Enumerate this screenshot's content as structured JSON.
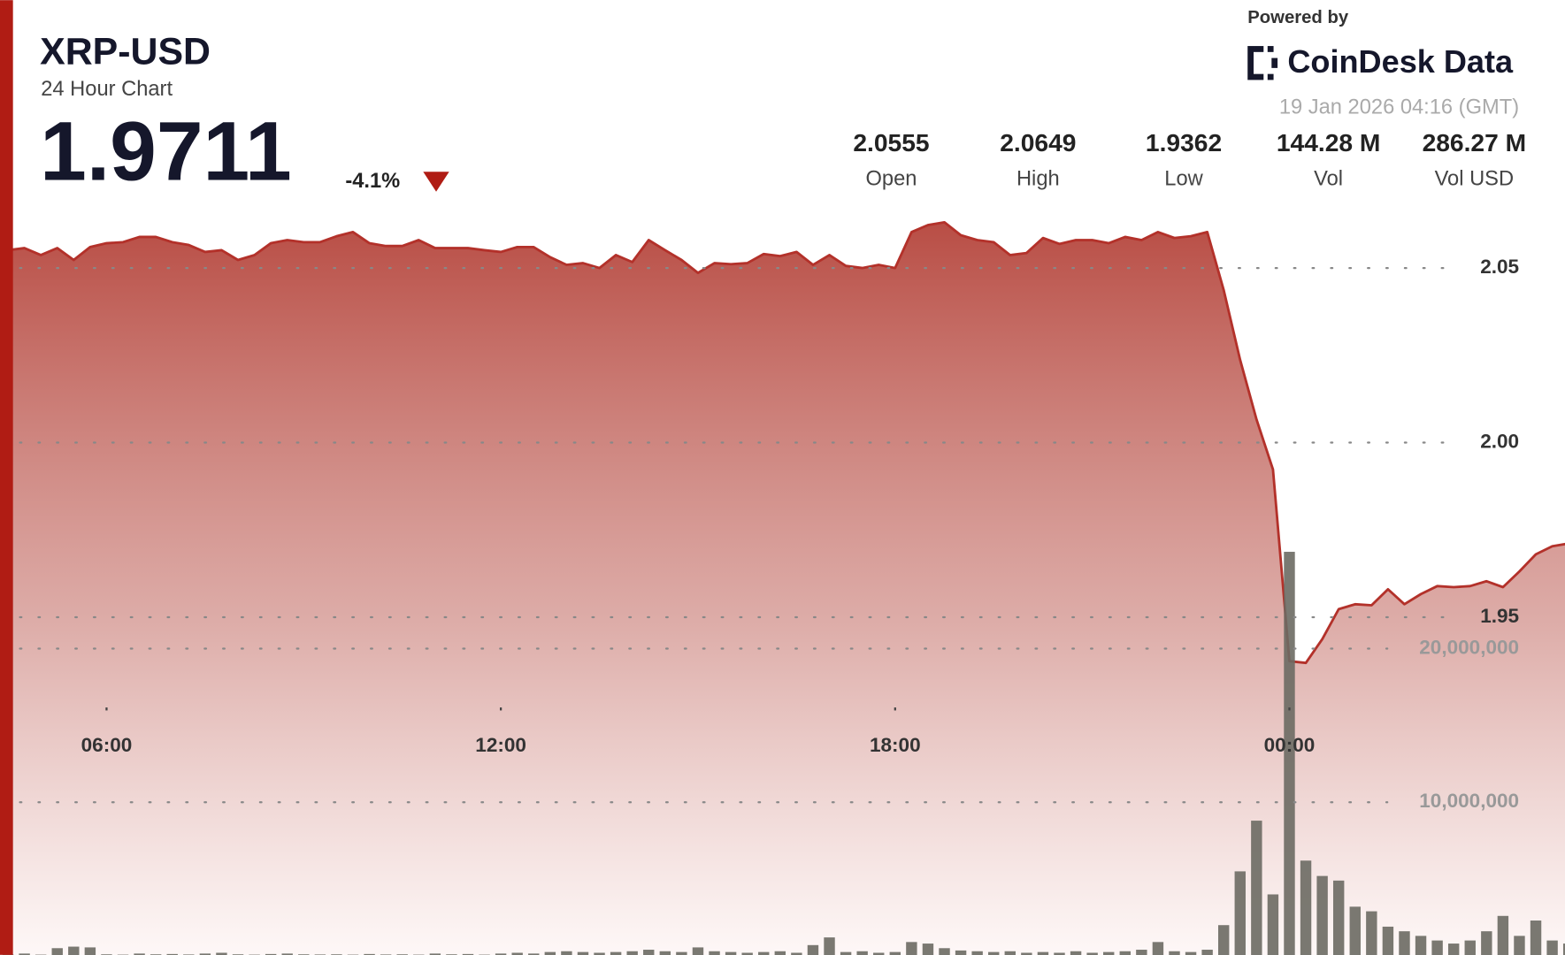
{
  "chart_data": {
    "type": "line",
    "title": "XRP-USD",
    "subtitle": "24 Hour Chart",
    "price": "1.9711",
    "change": "-4.1%",
    "stats": [
      {
        "value": "2.0555",
        "label": "Open"
      },
      {
        "value": "2.0649",
        "label": "High"
      },
      {
        "value": "1.9362",
        "label": "Low"
      },
      {
        "value": "144.28 M",
        "label": "Vol"
      },
      {
        "value": "286.27 M",
        "label": "Vol USD"
      }
    ],
    "powered_by": "Powered by",
    "brand": "CoinDesk Data",
    "timestamp": "19 Jan 2026 04:16 (GMT)",
    "x": [
      "04:30",
      "04:45",
      "05:00",
      "05:15",
      "05:30",
      "05:45",
      "06:00",
      "06:15",
      "06:30",
      "06:45",
      "07:00",
      "07:15",
      "07:30",
      "07:45",
      "08:00",
      "08:15",
      "08:30",
      "08:45",
      "09:00",
      "09:15",
      "09:30",
      "09:45",
      "10:00",
      "10:15",
      "10:30",
      "10:45",
      "11:00",
      "11:15",
      "11:30",
      "11:45",
      "12:00",
      "12:15",
      "12:30",
      "12:45",
      "13:00",
      "13:15",
      "13:30",
      "13:45",
      "14:00",
      "14:15",
      "14:30",
      "14:45",
      "15:00",
      "15:15",
      "15:30",
      "15:45",
      "16:00",
      "16:15",
      "16:30",
      "16:45",
      "17:00",
      "17:15",
      "17:30",
      "17:45",
      "18:00",
      "18:15",
      "18:30",
      "18:45",
      "19:00",
      "19:15",
      "19:30",
      "19:45",
      "20:00",
      "20:15",
      "20:30",
      "20:45",
      "21:00",
      "21:15",
      "21:30",
      "21:45",
      "22:00",
      "22:15",
      "22:30",
      "22:45",
      "23:00",
      "23:15",
      "23:30",
      "23:45",
      "00:00",
      "00:15",
      "00:30",
      "00:45",
      "01:00",
      "01:15",
      "01:30",
      "01:45",
      "02:00",
      "02:15",
      "02:30",
      "02:45",
      "03:00",
      "03:15",
      "03:30",
      "03:45",
      "04:00",
      "04:15"
    ],
    "xticks": [
      "06:00",
      "12:00",
      "18:00",
      "00:00"
    ],
    "ylim": [
      1.853,
      2.073
    ],
    "yticks": [
      1.95,
      {
        "value": 2,
        "label": "2.00"
      },
      2.05
    ],
    "y2lim": [
      0,
      50000000
    ],
    "y2ticks": [
      {
        "value": 10000000,
        "label": "10,000,000"
      },
      {
        "value": 20000000,
        "label": "20,000,000"
      }
    ],
    "grid": true,
    "series": [
      {
        "name": "Price",
        "type": "line",
        "color": "#b3312a",
        "values": [
          2.0551,
          2.0557,
          2.0537,
          2.0557,
          2.0523,
          2.056,
          2.0571,
          2.0574,
          2.0589,
          2.0589,
          2.0574,
          2.0566,
          2.0546,
          2.0551,
          2.0523,
          2.0537,
          2.0571,
          2.058,
          2.0574,
          2.0574,
          2.0591,
          2.0603,
          2.0571,
          2.0563,
          2.0563,
          2.058,
          2.0557,
          2.0557,
          2.0557,
          2.0551,
          2.0546,
          2.056,
          2.056,
          2.0531,
          2.0509,
          2.0514,
          2.05,
          2.0537,
          2.0517,
          2.058,
          2.0551,
          2.0523,
          2.0486,
          2.0514,
          2.0511,
          2.0514,
          2.054,
          2.0534,
          2.0546,
          2.0509,
          2.0537,
          2.0506,
          2.05,
          2.0509,
          2.05,
          2.0603,
          2.0623,
          2.0631,
          2.0594,
          2.058,
          2.0574,
          2.0537,
          2.0543,
          2.0586,
          2.0569,
          2.058,
          2.058,
          2.0571,
          2.0589,
          2.058,
          2.0603,
          2.0586,
          2.0591,
          2.0603,
          2.0437,
          2.0237,
          2.0066,
          1.9923,
          1.9374,
          1.9369,
          1.9437,
          1.9523,
          1.9537,
          1.9534,
          1.958,
          1.9537,
          1.9566,
          1.9589,
          1.9586,
          1.9589,
          1.9603,
          1.9586,
          1.9631,
          1.968,
          1.9703,
          1.9711
        ]
      },
      {
        "name": "Volume",
        "type": "bar",
        "axis": "y2",
        "color": "#6b6a63",
        "values": [
          100000,
          150000,
          80000,
          500000,
          600000,
          550000,
          100000,
          80000,
          150000,
          100000,
          120000,
          90000,
          150000,
          200000,
          100000,
          80000,
          120000,
          150000,
          100000,
          90000,
          100000,
          80000,
          120000,
          90000,
          100000,
          80000,
          150000,
          100000,
          120000,
          80000,
          150000,
          200000,
          150000,
          250000,
          300000,
          250000,
          200000,
          250000,
          300000,
          400000,
          300000,
          250000,
          550000,
          300000,
          250000,
          200000,
          250000,
          300000,
          200000,
          700000,
          1200000,
          250000,
          300000,
          200000,
          250000,
          900000,
          800000,
          500000,
          350000,
          300000,
          250000,
          300000,
          200000,
          250000,
          200000,
          300000,
          200000,
          250000,
          300000,
          400000,
          900000,
          300000,
          250000,
          400000,
          2000000,
          5500000,
          8800000,
          4000000,
          26300000,
          6200000,
          5200000,
          4900000,
          3200000,
          2900000,
          1900000,
          1600000,
          1300000,
          1000000,
          800000,
          1000000,
          1600000,
          2600000,
          1300000,
          2300000,
          1000000,
          800000
        ]
      }
    ]
  }
}
